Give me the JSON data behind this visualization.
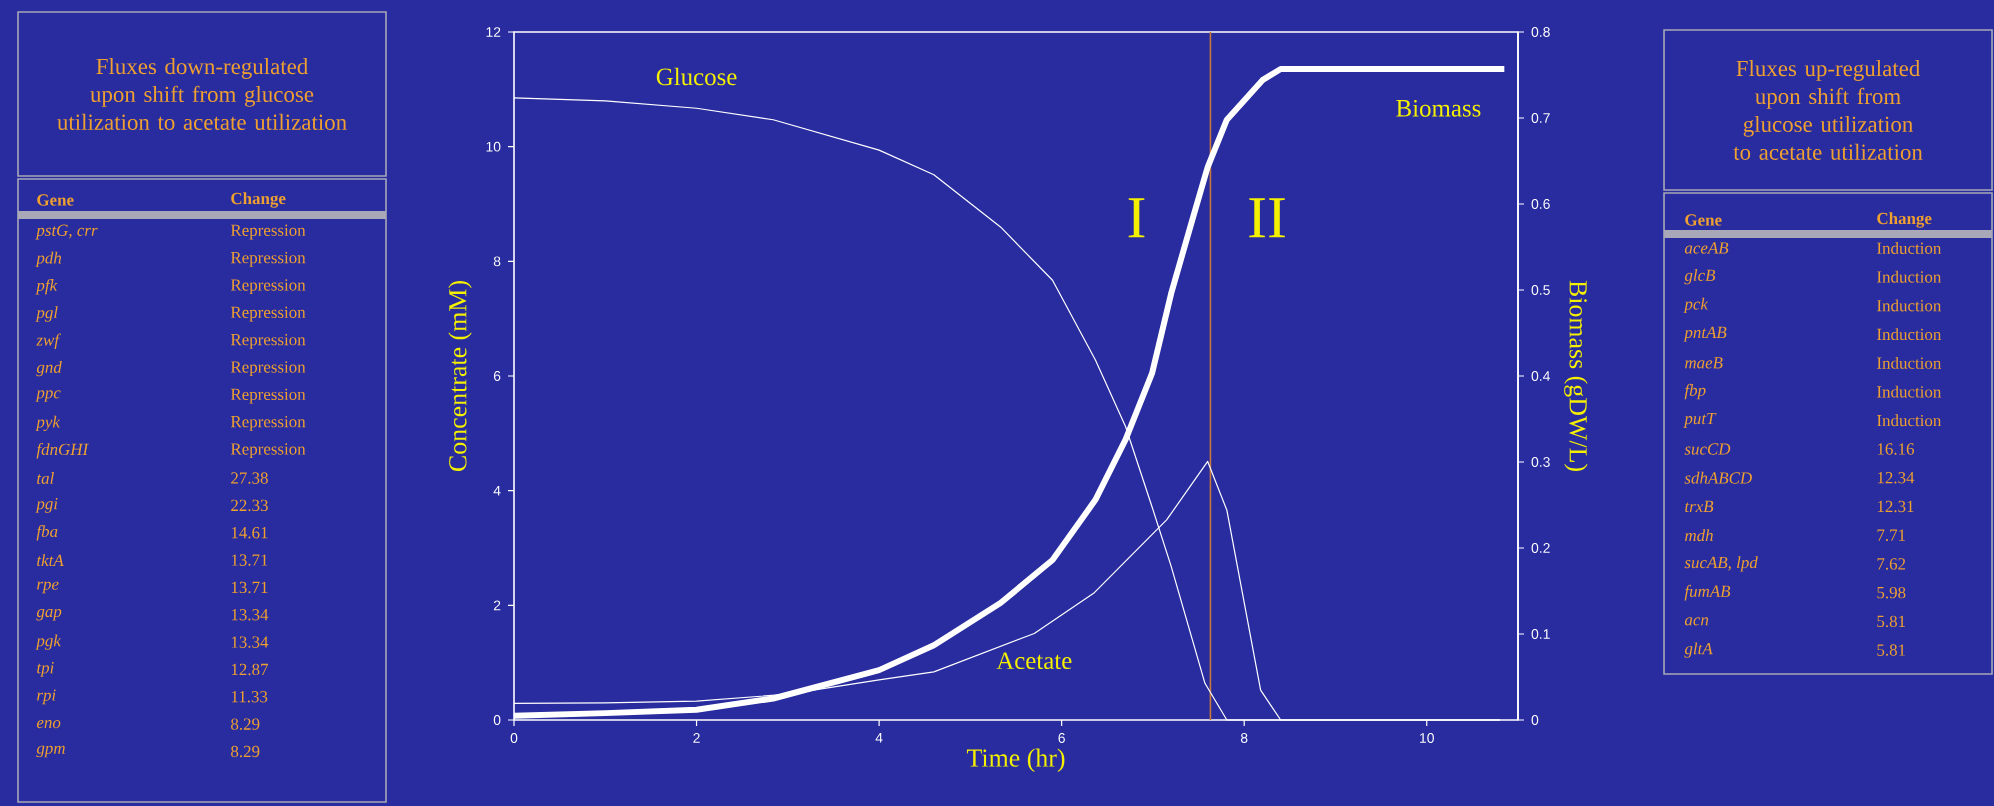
{
  "chart_data": [
    {
      "type": "other",
      "title": "Fluxes down-regulated upon shift from glucose utilization to acetate utilization",
      "annotations": [
        "Gene",
        "Change",
        "pstG, crr",
        "Repression",
        "pdh",
        "Repression",
        "pfk",
        "Repression",
        "pgl",
        "Repression",
        "zwf",
        "Repression",
        "gnd",
        "Repression",
        "ppc",
        "Repression",
        "pyk",
        "Repression",
        "fdnGHI",
        "Repression",
        "tal",
        "27.38",
        "pgi",
        "22.33",
        "fba",
        "14.61",
        "tktA",
        "13.71",
        "rpe",
        "13.71",
        "gap",
        "13.34",
        "pgk",
        "13.34",
        "tpi",
        "12.87",
        "rpi",
        "11.33",
        "eno",
        "8.29",
        "gpm",
        "8.29"
      ]
    },
    {
      "type": "line",
      "xlabel": "Time (hr)",
      "ylabel": "Concentrate (mM)",
      "y2label": "Biomass (gDW/L)",
      "xlim": [
        0,
        11
      ],
      "ylim": [
        0,
        12
      ],
      "y2lim": [
        0,
        0.8
      ],
      "xticks": [
        0,
        2,
        4,
        6,
        8,
        10
      ],
      "yticks": [
        0,
        2,
        4,
        6,
        8,
        10,
        12
      ],
      "y2ticks": [
        0,
        0.1,
        0.2,
        0.3,
        0.4,
        0.5,
        0.6,
        0.7,
        0.8
      ],
      "series": [
        {
          "name": "Glucose",
          "color": "#ffffff",
          "x": [
            0,
            1,
            2,
            2.84,
            4,
            4.6,
            5.33,
            5.9,
            6.37,
            6.7,
            6.99,
            7.2,
            7.57,
            7.81,
            10.8
          ],
          "values": [
            10.85,
            10.8,
            10.67,
            10.47,
            9.94,
            9.51,
            8.6,
            7.67,
            6.28,
            5.12,
            3.72,
            2.68,
            0.64,
            0,
            0
          ]
        },
        {
          "name": "Acetate",
          "color": "#ffffff",
          "x": [
            0,
            1,
            2,
            3,
            4,
            4.6,
            5.7,
            6.35,
            7.15,
            7.6,
            7.81,
            8.18,
            8.4,
            10.8
          ],
          "values": [
            0.29,
            0.3,
            0.33,
            0.45,
            0.7,
            0.84,
            1.51,
            2.21,
            3.49,
            4.51,
            3.66,
            0.52,
            0,
            0
          ]
        },
        {
          "name": "Biomass",
          "color": "#ffffff",
          "axis": "y2",
          "x": [
            0,
            1,
            2,
            2.84,
            4,
            4.6,
            5.33,
            5.9,
            6.37,
            6.7,
            6.99,
            7.2,
            7.43,
            7.6,
            7.81,
            8.2,
            8.4,
            10.85
          ],
          "values": [
            0.005,
            0.008,
            0.012,
            0.025,
            0.058,
            0.087,
            0.136,
            0.186,
            0.256,
            0.326,
            0.403,
            0.496,
            0.581,
            0.643,
            0.698,
            0.744,
            0.757,
            0.757
          ]
        }
      ],
      "ref_lines": [
        {
          "axis": "x",
          "value": 7.63,
          "color": "#c8783c"
        }
      ],
      "annotations": [
        "I",
        "II"
      ]
    },
    {
      "type": "other",
      "title": "Fluxes up-regulated upon shift from glucose utilization to acetate utilization",
      "annotations": [
        "Gene",
        "Change",
        "aceAB",
        "Induction",
        "glcB",
        "Induction",
        "pck",
        "Induction",
        "pntAB",
        "Induction",
        "maeB",
        "Induction",
        "fbp",
        "Induction",
        "putT",
        "Induction",
        "sucCD",
        "16.16",
        "sdhABCD",
        "12.34",
        "trxB",
        "12.31",
        "mdh",
        "7.71",
        "sucAB, lpd",
        "7.62",
        "fumAB",
        "5.98",
        "acn",
        "5.81",
        "gltA",
        "5.81"
      ]
    }
  ]
}
